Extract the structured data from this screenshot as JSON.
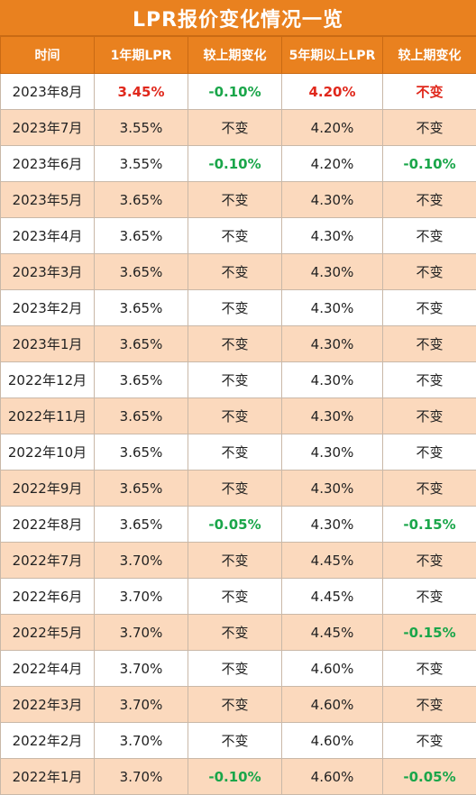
{
  "title": "LPR报价变化情况一览",
  "headers": [
    "时间",
    "1年期LPR",
    "较上期变化",
    "5年期以上LPR",
    "较上期变化"
  ],
  "colors": {
    "header_bg": "#e9811f",
    "alt_row_bg": "#fbd9bd",
    "up_red": "#e0281c",
    "down_green": "#1aa64a"
  },
  "rows": [
    {
      "date": "2023年8月",
      "lpr1": "3.45%",
      "chg1": "-0.10%",
      "lpr5": "4.20%",
      "chg5": "不变",
      "s_lpr1": "red",
      "s_chg1": "green",
      "s_lpr5": "red",
      "s_chg5": "red"
    },
    {
      "date": "2023年7月",
      "lpr1": "3.55%",
      "chg1": "不变",
      "lpr5": "4.20%",
      "chg5": "不变"
    },
    {
      "date": "2023年6月",
      "lpr1": "3.55%",
      "chg1": "-0.10%",
      "lpr5": "4.20%",
      "chg5": "-0.10%",
      "s_chg1": "green",
      "s_chg5": "green"
    },
    {
      "date": "2023年5月",
      "lpr1": "3.65%",
      "chg1": "不变",
      "lpr5": "4.30%",
      "chg5": "不变"
    },
    {
      "date": "2023年4月",
      "lpr1": "3.65%",
      "chg1": "不变",
      "lpr5": "4.30%",
      "chg5": "不变"
    },
    {
      "date": "2023年3月",
      "lpr1": "3.65%",
      "chg1": "不变",
      "lpr5": "4.30%",
      "chg5": "不变"
    },
    {
      "date": "2023年2月",
      "lpr1": "3.65%",
      "chg1": "不变",
      "lpr5": "4.30%",
      "chg5": "不变"
    },
    {
      "date": "2023年1月",
      "lpr1": "3.65%",
      "chg1": "不变",
      "lpr5": "4.30%",
      "chg5": "不变"
    },
    {
      "date": "2022年12月",
      "lpr1": "3.65%",
      "chg1": "不变",
      "lpr5": "4.30%",
      "chg5": "不变"
    },
    {
      "date": "2022年11月",
      "lpr1": "3.65%",
      "chg1": "不变",
      "lpr5": "4.30%",
      "chg5": "不变"
    },
    {
      "date": "2022年10月",
      "lpr1": "3.65%",
      "chg1": "不变",
      "lpr5": "4.30%",
      "chg5": "不变"
    },
    {
      "date": "2022年9月",
      "lpr1": "3.65%",
      "chg1": "不变",
      "lpr5": "4.30%",
      "chg5": "不变"
    },
    {
      "date": "2022年8月",
      "lpr1": "3.65%",
      "chg1": "-0.05%",
      "lpr5": "4.30%",
      "chg5": "-0.15%",
      "s_chg1": "green",
      "s_chg5": "green"
    },
    {
      "date": "2022年7月",
      "lpr1": "3.70%",
      "chg1": "不变",
      "lpr5": "4.45%",
      "chg5": "不变"
    },
    {
      "date": "2022年6月",
      "lpr1": "3.70%",
      "chg1": "不变",
      "lpr5": "4.45%",
      "chg5": "不变"
    },
    {
      "date": "2022年5月",
      "lpr1": "3.70%",
      "chg1": "不变",
      "lpr5": "4.45%",
      "chg5": "-0.15%",
      "s_chg5": "green"
    },
    {
      "date": "2022年4月",
      "lpr1": "3.70%",
      "chg1": "不变",
      "lpr5": "4.60%",
      "chg5": "不变"
    },
    {
      "date": "2022年3月",
      "lpr1": "3.70%",
      "chg1": "不变",
      "lpr5": "4.60%",
      "chg5": "不变"
    },
    {
      "date": "2022年2月",
      "lpr1": "3.70%",
      "chg1": "不变",
      "lpr5": "4.60%",
      "chg5": "不变"
    },
    {
      "date": "2022年1月",
      "lpr1": "3.70%",
      "chg1": "-0.10%",
      "lpr5": "4.60%",
      "chg5": "-0.05%",
      "s_chg1": "green",
      "s_chg5": "green"
    }
  ]
}
